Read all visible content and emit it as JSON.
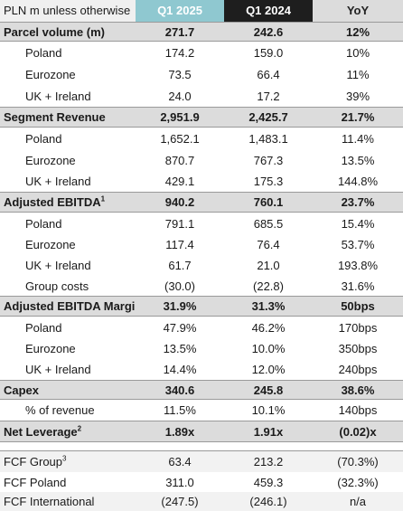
{
  "header": {
    "label": "PLN m unless otherwise",
    "col1": "Q1 2025",
    "col2": "Q1 2024",
    "col3": "YoY"
  },
  "rows": [
    {
      "label": "Parcel volume (m)",
      "v1": "271.7",
      "v2": "242.6",
      "v3": "12%"
    },
    {
      "label": "Poland",
      "v1": "174.2",
      "v2": "159.0",
      "v3": "10%"
    },
    {
      "label": "Eurozone",
      "v1": "73.5",
      "v2": "66.4",
      "v3": "11%"
    },
    {
      "label": "UK + Ireland",
      "v1": "24.0",
      "v2": "17.2",
      "v3": "39%"
    },
    {
      "label": "Segment Revenue",
      "v1": "2,951.9",
      "v2": "2,425.7",
      "v3": "21.7%"
    },
    {
      "label": "Poland",
      "v1": "1,652.1",
      "v2": "1,483.1",
      "v3": "11.4%"
    },
    {
      "label": "Eurozone",
      "v1": "870.7",
      "v2": "767.3",
      "v3": "13.5%"
    },
    {
      "label": "UK + Ireland",
      "v1": "429.1",
      "v2": "175.3",
      "v3": "144.8%"
    },
    {
      "label": "Adjusted EBITDA",
      "sup": "1",
      "v1": "940.2",
      "v2": "760.1",
      "v3": "23.7%"
    },
    {
      "label": "Poland",
      "v1": "791.1",
      "v2": "685.5",
      "v3": "15.4%"
    },
    {
      "label": "Eurozone",
      "v1": "117.4",
      "v2": "76.4",
      "v3": "53.7%"
    },
    {
      "label": "UK + Ireland",
      "v1": "61.7",
      "v2": "21.0",
      "v3": "193.8%"
    },
    {
      "label": "Group costs",
      "v1": "(30.0)",
      "v2": "(22.8)",
      "v3": "31.6%"
    },
    {
      "label": "Adjusted EBITDA Margin",
      "v1": "31.9%",
      "v2": "31.3%",
      "v3": "50bps"
    },
    {
      "label": "Poland",
      "v1": "47.9%",
      "v2": "46.2%",
      "v3": "170bps"
    },
    {
      "label": "Eurozone",
      "v1": "13.5%",
      "v2": "10.0%",
      "v3": "350bps"
    },
    {
      "label": "UK + Ireland",
      "v1": "14.4%",
      "v2": "12.0%",
      "v3": "240bps"
    },
    {
      "label": "Capex",
      "v1": "340.6",
      "v2": "245.8",
      "v3": "38.6%"
    },
    {
      "label": "% of revenue",
      "v1": "11.5%",
      "v2": "10.1%",
      "v3": "140bps"
    },
    {
      "label": "Net Leverage",
      "sup": "2",
      "v1": "1.89x",
      "v2": "1.91x",
      "v3": "(0.02)x"
    },
    {
      "label": "FCF Group",
      "sup": "3",
      "v1": "63.4",
      "v2": "213.2",
      "v3": "(70.3%)"
    },
    {
      "label": "FCF Poland",
      "v1": "311.0",
      "v2": "459.3",
      "v3": "(32.3%)"
    },
    {
      "label": "FCF International",
      "v1": "(247.5)",
      "v2": "(246.1)",
      "v3": "n/a"
    }
  ]
}
